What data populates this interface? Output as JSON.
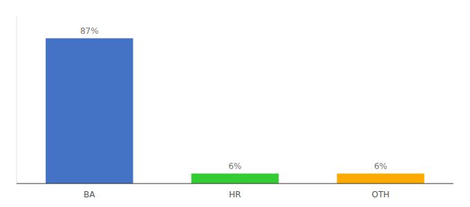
{
  "chart_data": {
    "type": "bar",
    "categories": [
      "BA",
      "HR",
      "OTH"
    ],
    "values": [
      87,
      6,
      6
    ],
    "value_labels": [
      "87%",
      "6%",
      "6%"
    ],
    "colors": [
      "#4472c4",
      "#33cc33",
      "#ffaa00"
    ],
    "ylim": [
      0,
      100
    ],
    "data_labels": true,
    "tick_labels": "x"
  }
}
